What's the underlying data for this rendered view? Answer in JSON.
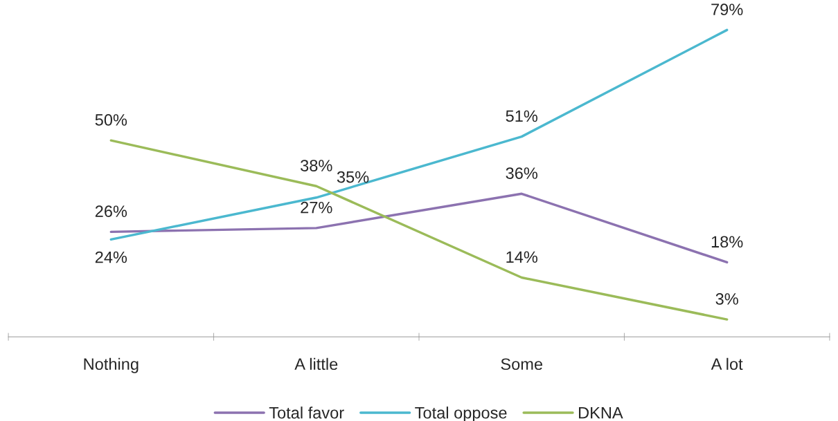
{
  "chart_data": {
    "type": "line",
    "categories": [
      "Nothing",
      "A little",
      "Some",
      "A lot"
    ],
    "series": [
      {
        "name": "Total favor",
        "color": "#8c72b0",
        "values": [
          26,
          27,
          36,
          18
        ],
        "value_labels": [
          "26%",
          "27%",
          "36%",
          "18%"
        ]
      },
      {
        "name": "Total oppose",
        "color": "#4bb8cf",
        "values": [
          24,
          35,
          51,
          79
        ],
        "value_labels": [
          "24%",
          "35%",
          "51%",
          "79%"
        ]
      },
      {
        "name": "DKNA",
        "color": "#9bbb59",
        "values": [
          50,
          38,
          14,
          3
        ],
        "value_labels": [
          "50%",
          "38%",
          "14%",
          "3%"
        ]
      }
    ],
    "grid": false,
    "legend": "bottom",
    "marker": "none",
    "line_style": "solid",
    "tick_labels": "x"
  }
}
